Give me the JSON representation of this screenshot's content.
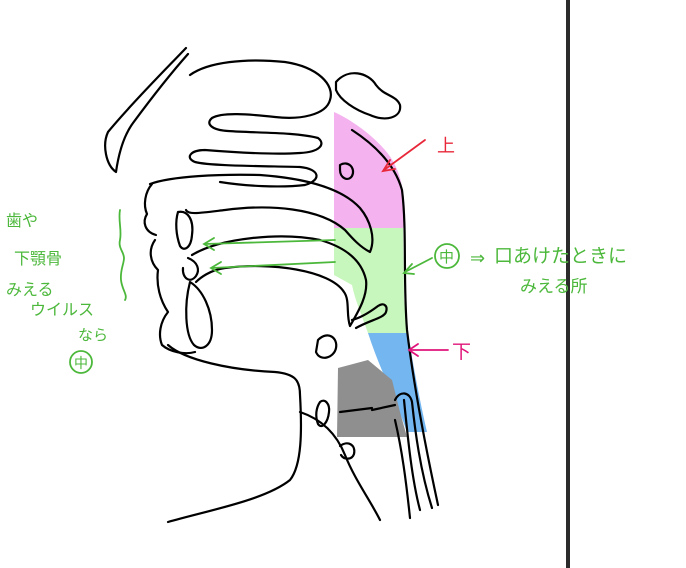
{
  "colors": {
    "upper_region": "#f4b2ef",
    "middle_region": "#c7f7bc",
    "lower_region": "#74b6f0",
    "larynx_region": "#8f8f8f",
    "green_annotation": "#4cb83b",
    "red_annotation": "#e8283a",
    "pink_annotation": "#e0157b",
    "outline": "#000000"
  },
  "labels": {
    "upper": "上",
    "middle_circle": "中",
    "middle_note_arrow": "⇒",
    "middle_note_line1": "口あけたときに",
    "middle_note_line2": "みえる所",
    "lower": "下"
  },
  "side_note": {
    "line1": "歯や",
    "line2": "下顎骨",
    "line3": "みえる",
    "line4": "ウイルス",
    "line5": "なら",
    "circle": "中"
  }
}
